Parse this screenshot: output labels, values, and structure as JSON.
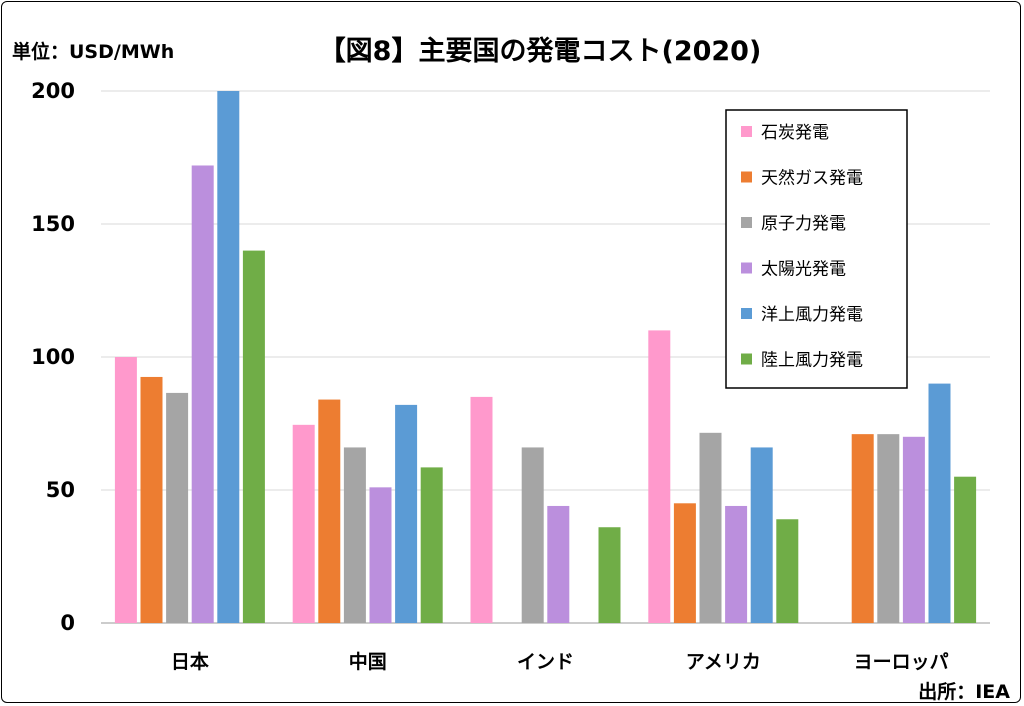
{
  "chart_data": {
    "type": "bar",
    "title": "【図8】主要国の発電コスト(2020)",
    "unit_label": "単位：USD/MWh",
    "source": "出所：IEA",
    "categories": [
      "日本",
      "中国",
      "インド",
      "アメリカ",
      "ヨーロッパ"
    ],
    "ylim": [
      0,
      200
    ],
    "yticks": [
      0,
      50,
      100,
      150,
      200
    ],
    "grid": true,
    "legend_position": "top-right",
    "series": [
      {
        "name": "石炭発電",
        "color": "#FF99CC",
        "values": [
          100,
          74.5,
          85,
          110,
          null
        ]
      },
      {
        "name": "天然ガス発電",
        "color": "#ED7D31",
        "values": [
          92.5,
          84,
          null,
          45,
          71
        ]
      },
      {
        "name": "原子力発電",
        "color": "#A5A5A5",
        "values": [
          86.5,
          66,
          66,
          71.5,
          71
        ]
      },
      {
        "name": "太陽光発電",
        "color": "#BB8FDD",
        "values": [
          172,
          51,
          44,
          44,
          70
        ]
      },
      {
        "name": "洋上風力発電",
        "color": "#5B9BD5",
        "values": [
          200,
          82,
          null,
          66,
          90
        ]
      },
      {
        "name": "陸上風力発電",
        "color": "#70AD47",
        "values": [
          140,
          58.5,
          36,
          39,
          55
        ]
      }
    ]
  }
}
